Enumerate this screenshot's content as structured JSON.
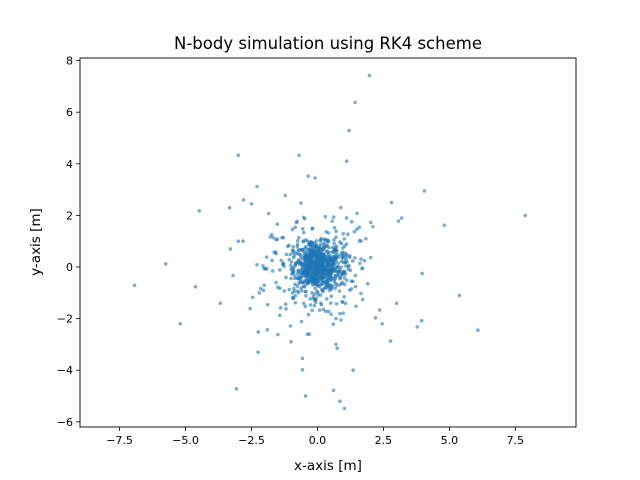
{
  "chart_data": {
    "type": "scatter",
    "title": "N-body simulation using RK4 scheme",
    "xlabel": "x-axis [m]",
    "ylabel": "y-axis [m]",
    "xlim": [
      -9.0,
      9.8
    ],
    "ylim": [
      -6.2,
      8.1
    ],
    "xticks": [
      -7.5,
      -5.0,
      -2.5,
      0.0,
      2.5,
      5.0,
      7.5
    ],
    "xtick_labels": [
      "−7.5",
      "−5.0",
      "−2.5",
      "0.0",
      "2.5",
      "5.0",
      "7.5"
    ],
    "yticks": [
      -6,
      -4,
      -2,
      0,
      2,
      4,
      6,
      8
    ],
    "ytick_labels": [
      "−6",
      "−4",
      "−2",
      "0",
      "2",
      "4",
      "6",
      "8"
    ],
    "grid": false,
    "marker_color": "#1f77b4",
    "marker_alpha": 0.6,
    "n_core_points": 900,
    "core_sigma": 0.45,
    "points": [
      [
        1.97,
        7.42
      ],
      [
        1.43,
        6.38
      ],
      [
        1.2,
        5.29
      ],
      [
        -3.0,
        4.33
      ],
      [
        -0.7,
        4.33
      ],
      [
        1.11,
        4.1
      ],
      [
        -2.29,
        3.12
      ],
      [
        -1.22,
        2.77
      ],
      [
        -0.35,
        3.52
      ],
      [
        -0.09,
        3.45
      ],
      [
        -2.8,
        2.6
      ],
      [
        -4.48,
        2.18
      ],
      [
        -3.33,
        2.3
      ],
      [
        4.05,
        2.95
      ],
      [
        7.88,
        2.0
      ],
      [
        4.81,
        1.62
      ],
      [
        2.81,
        2.5
      ],
      [
        2.1,
        1.56
      ],
      [
        -5.75,
        0.12
      ],
      [
        -6.93,
        -0.71
      ],
      [
        -4.62,
        -0.77
      ],
      [
        -3.68,
        -1.4
      ],
      [
        -5.2,
        -2.2
      ],
      [
        5.38,
        -1.1
      ],
      [
        6.08,
        -2.45
      ],
      [
        3.95,
        -2.08
      ],
      [
        3.78,
        -2.32
      ],
      [
        2.77,
        -2.87
      ],
      [
        -3.07,
        -4.72
      ],
      [
        -0.45,
        -5.0
      ],
      [
        0.61,
        -4.78
      ],
      [
        0.85,
        -5.2
      ],
      [
        1.02,
        -5.48
      ],
      [
        1.35,
        -4.0
      ],
      [
        -0.57,
        -3.54
      ],
      [
        -2.25,
        -3.3
      ],
      [
        -3.3,
        0.7
      ],
      [
        -3.2,
        -0.33
      ],
      [
        3.19,
        1.9
      ],
      [
        3.07,
        1.78
      ],
      [
        2.2,
        -1.97
      ],
      [
        2.45,
        -2.2
      ],
      [
        3.0,
        -1.4
      ],
      [
        3.97,
        -0.25
      ],
      [
        -1.85,
        2.07
      ],
      [
        -1.52,
        1.66
      ],
      [
        -2.05,
        -0.9
      ],
      [
        -2.2,
        -1.0
      ],
      [
        -2.55,
        -1.61
      ],
      [
        -1.9,
        -2.43
      ],
      [
        -1.5,
        -2.62
      ],
      [
        -1.0,
        -2.9
      ],
      [
        0.7,
        -3.0
      ],
      [
        0.75,
        -3.15
      ],
      [
        1.5,
        2.08
      ],
      [
        1.3,
        1.75
      ],
      [
        -0.52,
        1.92
      ],
      [
        0.3,
        1.95
      ],
      [
        -2.5,
        2.45
      ],
      [
        -3.0,
        1.0
      ]
    ]
  }
}
